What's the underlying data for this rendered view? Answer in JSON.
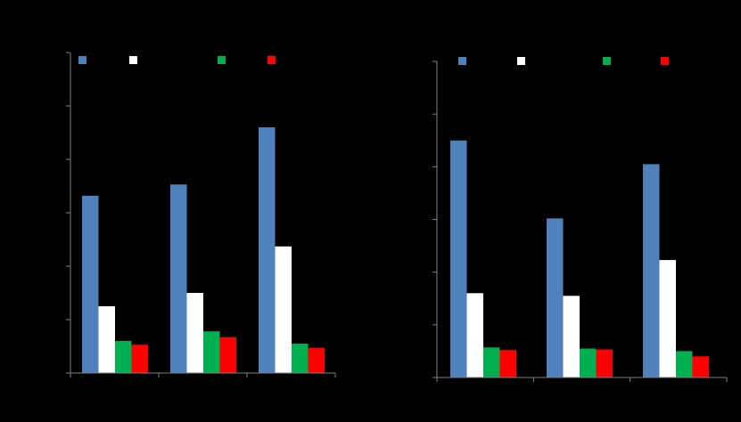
{
  "background": "#000000",
  "axis_color": "#7f7f7f",
  "chart_data": [
    {
      "type": "bar",
      "grid": false,
      "legend_position": "top",
      "ylim": [
        0,
        6
      ],
      "y_ticks": [
        0,
        1,
        2,
        3,
        4,
        5,
        6
      ],
      "categories": [
        "",
        "",
        ""
      ],
      "series": [
        {
          "color": "#4f81bd",
          "values": [
            3.32,
            3.53,
            4.6
          ]
        },
        {
          "color": "#ffffff",
          "values": [
            1.25,
            1.5,
            2.37
          ]
        },
        {
          "color": "#00b050",
          "values": [
            0.6,
            0.78,
            0.55
          ]
        },
        {
          "color": "#ff0000",
          "values": [
            0.53,
            0.67,
            0.47
          ]
        }
      ]
    },
    {
      "type": "bar",
      "grid": false,
      "legend_position": "top",
      "ylim": [
        0,
        6
      ],
      "y_ticks": [
        0,
        1,
        2,
        3,
        4,
        5,
        6
      ],
      "categories": [
        "",
        "",
        ""
      ],
      "series": [
        {
          "color": "#4f81bd",
          "values": [
            4.5,
            3.02,
            4.05
          ]
        },
        {
          "color": "#ffffff",
          "values": [
            1.6,
            1.55,
            2.23
          ]
        },
        {
          "color": "#00b050",
          "values": [
            0.57,
            0.55,
            0.5
          ]
        },
        {
          "color": "#ff0000",
          "values": [
            0.52,
            0.53,
            0.4
          ]
        }
      ]
    }
  ]
}
